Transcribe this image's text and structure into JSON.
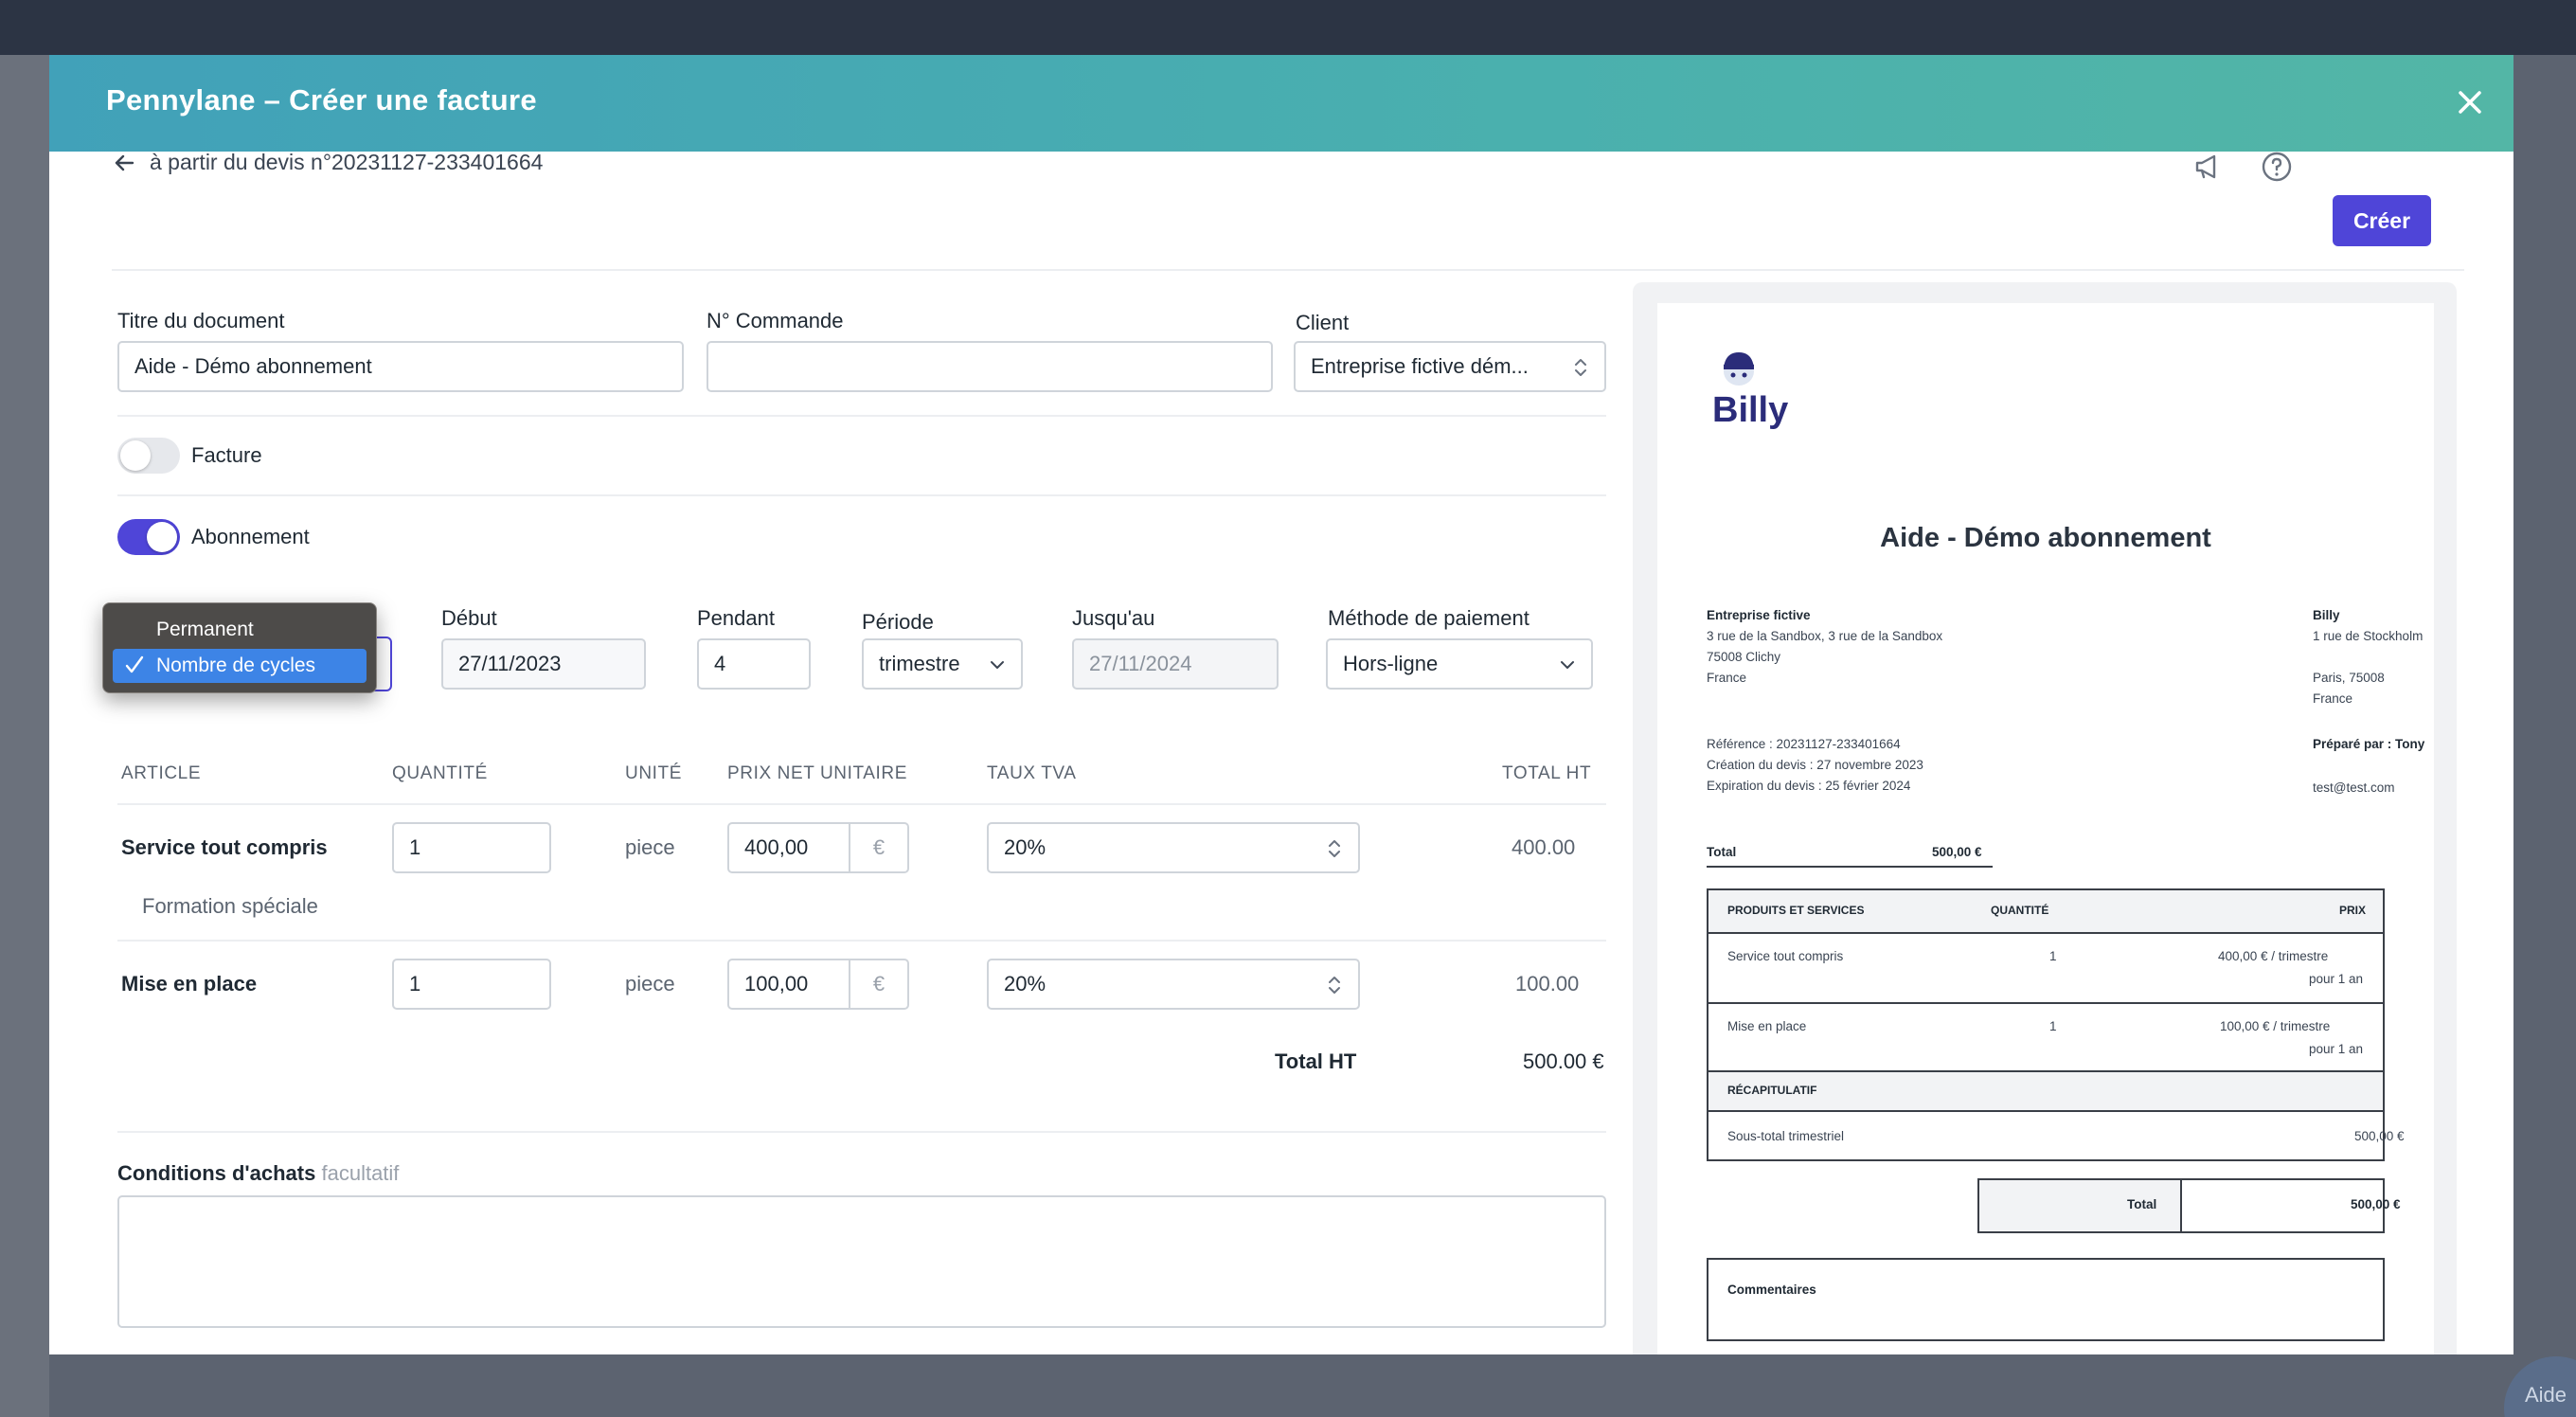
{
  "modal": {
    "title": "Pennylane – Créer une facture"
  },
  "topbar": {
    "back_label": "à partir du devis n°20231127-233401664",
    "create_label": "Créer"
  },
  "form": {
    "titre_label": "Titre du document",
    "titre_value": "Aide - Démo abonnement",
    "commande_label": "N° Commande",
    "commande_value": "",
    "client_label": "Client",
    "client_value": "Entreprise fictive dém...",
    "facture_label": "Facture",
    "facture_on": false,
    "abonnement_label": "Abonnement",
    "abonnement_on": true,
    "debut_label": "Début",
    "debut_value": "27/11/2023",
    "pendant_label": "Pendant",
    "pendant_value": "4",
    "periode_label": "Période",
    "periode_value": "trimestre",
    "jusquau_label": "Jusqu'au",
    "jusquau_value": "27/11/2024",
    "paiement_label": "Méthode de paiement",
    "paiement_value": "Hors-ligne",
    "conditions_label": "Conditions d'achats",
    "conditions_optional": "facultatif"
  },
  "dropdown": {
    "options": [
      "Permanent",
      "Nombre de cycles"
    ],
    "selected": "Nombre de cycles"
  },
  "table": {
    "headers": [
      "ARTICLE",
      "QUANTITÉ",
      "UNITÉ",
      "PRIX NET UNITAIRE",
      "TAUX TVA",
      "TOTAL HT"
    ],
    "rows": [
      {
        "article": "Service tout compris",
        "description": "Formation spéciale",
        "quantite": "1",
        "unite": "piece",
        "prix": "400,00",
        "devise": "€",
        "tva": "20%",
        "total": "400.00"
      },
      {
        "article": "Mise en place",
        "description": "",
        "quantite": "1",
        "unite": "piece",
        "prix": "100,00",
        "devise": "€",
        "tva": "20%",
        "total": "100.00"
      }
    ],
    "total_label": "Total HT",
    "total_value": "500.00 €"
  },
  "preview": {
    "logo_text": "Billy",
    "title": "Aide - Démo abonnement",
    "client": {
      "name": "Entreprise fictive",
      "address1": "3 rue de la Sandbox, 3 rue de la Sandbox",
      "city": "75008 Clichy",
      "country": "France"
    },
    "issuer": {
      "name": "Billy",
      "address1": "1 rue de Stockholm",
      "city": "Paris, 75008",
      "country": "France"
    },
    "reference": "Référence : 20231127-233401664",
    "creation": "Création du devis : 27 novembre 2023",
    "expiration": "Expiration du devis : 25 février 2024",
    "prepared_by": "Préparé par : Tony",
    "email": "test@test.com",
    "total_label": "Total",
    "total_value": "500,00 €",
    "table_headers": [
      "PRODUITS ET SERVICES",
      "QUANTITÉ",
      "PRIX"
    ],
    "rows": [
      {
        "name": "Service tout compris",
        "qty": "1",
        "price": "400,00 € / trimestre",
        "duration": "pour 1 an"
      },
      {
        "name": "Mise en place",
        "qty": "1",
        "price": "100,00 € / trimestre",
        "duration": "pour 1 an"
      }
    ],
    "recap_label": "RÉCAPITULATIF",
    "subtotal_label": "Sous-total trimestriel",
    "subtotal_value": "500,00 €",
    "grand_total_label": "Total",
    "grand_total_value": "500,00 €",
    "comments_label": "Commentaires"
  },
  "help_bubble": "Aide",
  "colors": {
    "primary": "#4f45d8",
    "header_start": "#41a1b9",
    "header_end": "#53b6a6",
    "dropdown_bg": "#4d4b49",
    "dropdown_selected": "#3d84e6"
  }
}
